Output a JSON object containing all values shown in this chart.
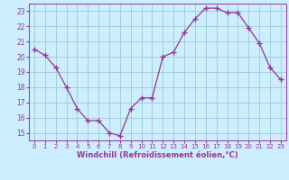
{
  "x": [
    0,
    1,
    2,
    3,
    4,
    5,
    6,
    7,
    8,
    9,
    10,
    11,
    12,
    13,
    14,
    15,
    16,
    17,
    18,
    19,
    20,
    21,
    22,
    23
  ],
  "y": [
    20.5,
    20.1,
    19.3,
    18.0,
    16.6,
    15.8,
    15.8,
    15.0,
    14.8,
    16.6,
    17.3,
    17.3,
    20.0,
    20.3,
    21.6,
    22.5,
    23.2,
    23.2,
    22.9,
    22.9,
    21.9,
    20.9,
    19.3,
    18.5
  ],
  "line_color": "#993399",
  "marker": "+",
  "marker_size": 4,
  "bg_color": "#cceeff",
  "grid_color": "#99cccc",
  "xlabel": "Windchill (Refroidissement éolien,°C)",
  "xlabel_color": "#993399",
  "tick_color": "#993399",
  "ylim": [
    14.5,
    23.5
  ],
  "xlim": [
    -0.5,
    23.5
  ],
  "yticks": [
    15,
    16,
    17,
    18,
    19,
    20,
    21,
    22,
    23
  ],
  "xticks": [
    0,
    1,
    2,
    3,
    4,
    5,
    6,
    7,
    8,
    9,
    10,
    11,
    12,
    13,
    14,
    15,
    16,
    17,
    18,
    19,
    20,
    21,
    22,
    23
  ],
  "xtick_labels": [
    "0",
    "1",
    "2",
    "3",
    "4",
    "5",
    "6",
    "7",
    "8",
    "9",
    "10",
    "11",
    "12",
    "13",
    "14",
    "15",
    "16",
    "17",
    "18",
    "19",
    "20",
    "21",
    "22",
    "23"
  ]
}
